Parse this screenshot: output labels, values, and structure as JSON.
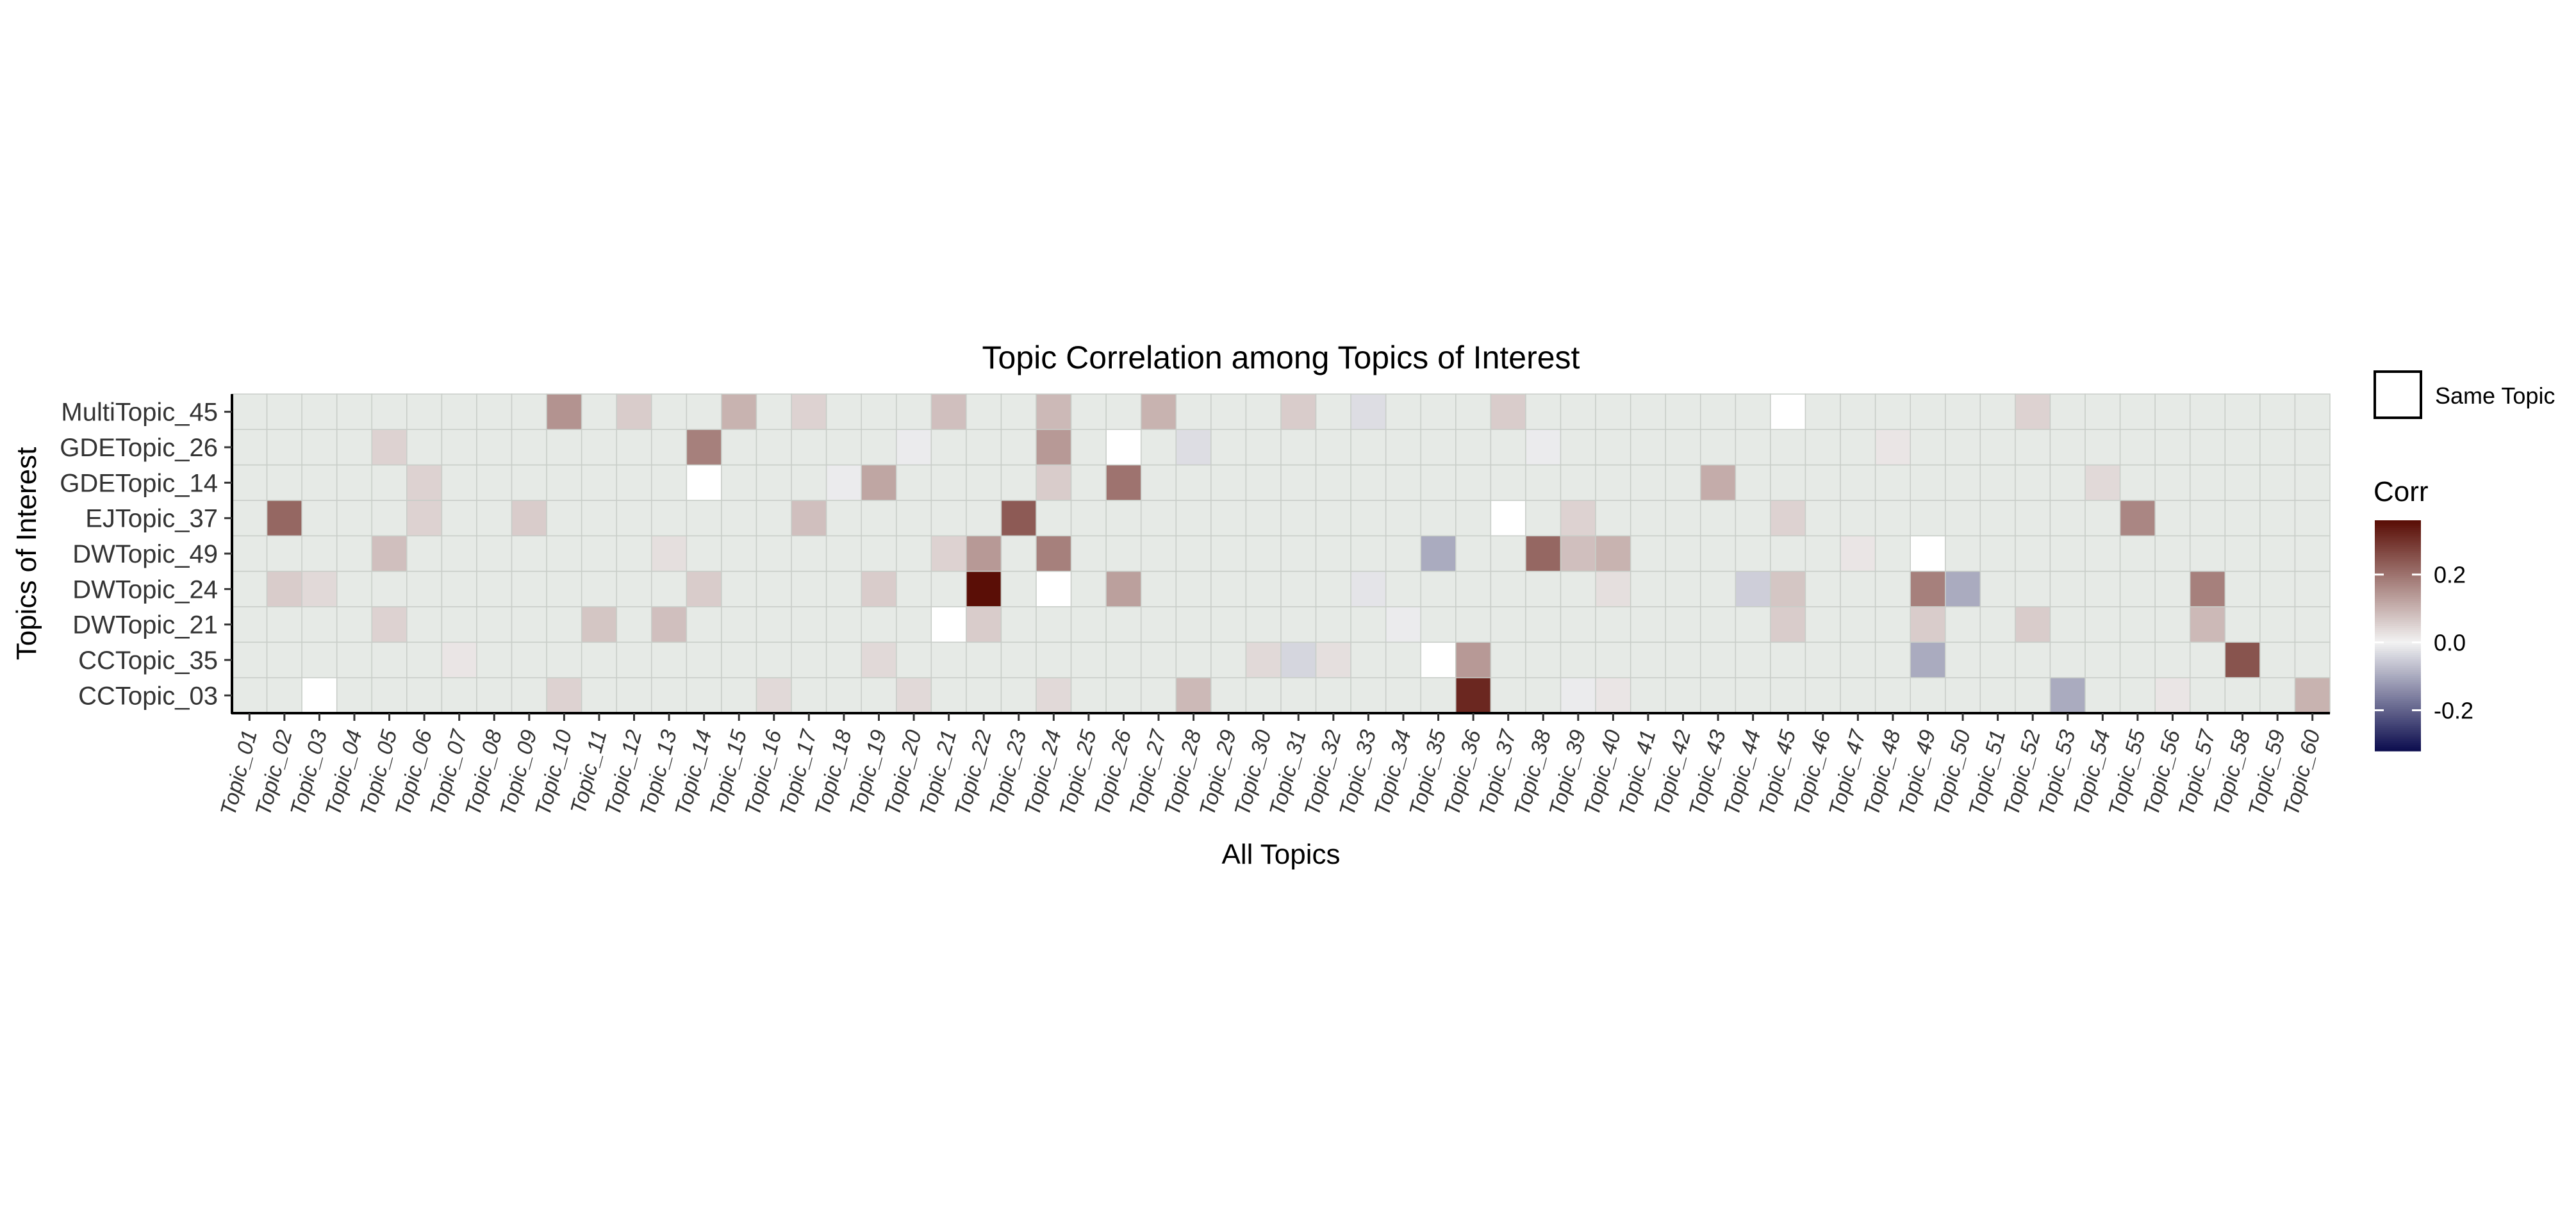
{
  "chart_data": {
    "type": "heatmap",
    "title": "Topic Correlation among Topics of Interest",
    "xlabel": "All Topics",
    "ylabel": "Topics of Interest",
    "x_categories": [
      "Topic_01",
      "Topic_02",
      "Topic_03",
      "Topic_04",
      "Topic_05",
      "Topic_06",
      "Topic_07",
      "Topic_08",
      "Topic_09",
      "Topic_10",
      "Topic_11",
      "Topic_12",
      "Topic_13",
      "Topic_14",
      "Topic_15",
      "Topic_16",
      "Topic_17",
      "Topic_18",
      "Topic_19",
      "Topic_20",
      "Topic_21",
      "Topic_22",
      "Topic_23",
      "Topic_24",
      "Topic_25",
      "Topic_26",
      "Topic_27",
      "Topic_28",
      "Topic_29",
      "Topic_30",
      "Topic_31",
      "Topic_32",
      "Topic_33",
      "Topic_34",
      "Topic_35",
      "Topic_36",
      "Topic_37",
      "Topic_38",
      "Topic_39",
      "Topic_40",
      "Topic_41",
      "Topic_42",
      "Topic_43",
      "Topic_44",
      "Topic_45",
      "Topic_46",
      "Topic_47",
      "Topic_48",
      "Topic_49",
      "Topic_50",
      "Topic_51",
      "Topic_52",
      "Topic_53",
      "Topic_54",
      "Topic_55",
      "Topic_56",
      "Topic_57",
      "Topic_58",
      "Topic_59",
      "Topic_60"
    ],
    "y_categories": [
      "MultiTopic_45",
      "GDETopic_26",
      "GDETopic_14",
      "EJTopic_37",
      "DWTopic_49",
      "DWTopic_24",
      "DWTopic_21",
      "CCTopic_35",
      "CCTopic_03"
    ],
    "base_value": 0.0,
    "cells": [
      {
        "y": "MultiTopic_45",
        "x": "Topic_10",
        "v": 0.15
      },
      {
        "y": "MultiTopic_45",
        "x": "Topic_12",
        "v": 0.06
      },
      {
        "y": "MultiTopic_45",
        "x": "Topic_15",
        "v": 0.1
      },
      {
        "y": "MultiTopic_45",
        "x": "Topic_17",
        "v": 0.05
      },
      {
        "y": "MultiTopic_45",
        "x": "Topic_21",
        "v": 0.08
      },
      {
        "y": "MultiTopic_45",
        "x": "Topic_24",
        "v": 0.09
      },
      {
        "y": "MultiTopic_45",
        "x": "Topic_27",
        "v": 0.1
      },
      {
        "y": "MultiTopic_45",
        "x": "Topic_31",
        "v": 0.06
      },
      {
        "y": "MultiTopic_45",
        "x": "Topic_33",
        "v": -0.03
      },
      {
        "y": "MultiTopic_45",
        "x": "Topic_37",
        "v": 0.06
      },
      {
        "y": "MultiTopic_45",
        "x": "Topic_52",
        "v": 0.05
      },
      {
        "y": "GDETopic_26",
        "x": "Topic_05",
        "v": 0.05
      },
      {
        "y": "GDETopic_26",
        "x": "Topic_14",
        "v": 0.18
      },
      {
        "y": "GDETopic_26",
        "x": "Topic_20",
        "v": -0.01
      },
      {
        "y": "GDETopic_26",
        "x": "Topic_24",
        "v": 0.14
      },
      {
        "y": "GDETopic_26",
        "x": "Topic_28",
        "v": -0.03
      },
      {
        "y": "GDETopic_26",
        "x": "Topic_38",
        "v": -0.01
      },
      {
        "y": "GDETopic_26",
        "x": "Topic_48",
        "v": 0.02
      },
      {
        "y": "GDETopic_14",
        "x": "Topic_06",
        "v": 0.05
      },
      {
        "y": "GDETopic_14",
        "x": "Topic_18",
        "v": -0.01
      },
      {
        "y": "GDETopic_14",
        "x": "Topic_19",
        "v": 0.12
      },
      {
        "y": "GDETopic_14",
        "x": "Topic_24",
        "v": 0.06
      },
      {
        "y": "GDETopic_14",
        "x": "Topic_26",
        "v": 0.2
      },
      {
        "y": "GDETopic_14",
        "x": "Topic_43",
        "v": 0.11
      },
      {
        "y": "GDETopic_14",
        "x": "Topic_54",
        "v": 0.04
      },
      {
        "y": "EJTopic_37",
        "x": "Topic_02",
        "v": 0.22
      },
      {
        "y": "EJTopic_37",
        "x": "Topic_06",
        "v": 0.05
      },
      {
        "y": "EJTopic_37",
        "x": "Topic_09",
        "v": 0.06
      },
      {
        "y": "EJTopic_37",
        "x": "Topic_17",
        "v": 0.08
      },
      {
        "y": "EJTopic_37",
        "x": "Topic_23",
        "v": 0.24
      },
      {
        "y": "EJTopic_37",
        "x": "Topic_39",
        "v": 0.05
      },
      {
        "y": "EJTopic_37",
        "x": "Topic_45",
        "v": 0.05
      },
      {
        "y": "EJTopic_37",
        "x": "Topic_55",
        "v": 0.17
      },
      {
        "y": "DWTopic_49",
        "x": "Topic_05",
        "v": 0.08
      },
      {
        "y": "DWTopic_49",
        "x": "Topic_13",
        "v": 0.03
      },
      {
        "y": "DWTopic_49",
        "x": "Topic_21",
        "v": 0.05
      },
      {
        "y": "DWTopic_49",
        "x": "Topic_22",
        "v": 0.14
      },
      {
        "y": "DWTopic_49",
        "x": "Topic_24",
        "v": 0.18
      },
      {
        "y": "DWTopic_49",
        "x": "Topic_35",
        "v": -0.1
      },
      {
        "y": "DWTopic_49",
        "x": "Topic_38",
        "v": 0.22
      },
      {
        "y": "DWTopic_49",
        "x": "Topic_39",
        "v": 0.08
      },
      {
        "y": "DWTopic_49",
        "x": "Topic_40",
        "v": 0.1
      },
      {
        "y": "DWTopic_49",
        "x": "Topic_47",
        "v": 0.02
      },
      {
        "y": "DWTopic_24",
        "x": "Topic_02",
        "v": 0.06
      },
      {
        "y": "DWTopic_24",
        "x": "Topic_03",
        "v": 0.04
      },
      {
        "y": "DWTopic_24",
        "x": "Topic_14",
        "v": 0.06
      },
      {
        "y": "DWTopic_24",
        "x": "Topic_19",
        "v": 0.06
      },
      {
        "y": "DWTopic_24",
        "x": "Topic_22",
        "v": 0.36
      },
      {
        "y": "DWTopic_24",
        "x": "Topic_26",
        "v": 0.13
      },
      {
        "y": "DWTopic_24",
        "x": "Topic_33",
        "v": -0.02
      },
      {
        "y": "DWTopic_24",
        "x": "Topic_40",
        "v": 0.03
      },
      {
        "y": "DWTopic_24",
        "x": "Topic_44",
        "v": -0.05
      },
      {
        "y": "DWTopic_24",
        "x": "Topic_45",
        "v": 0.07
      },
      {
        "y": "DWTopic_24",
        "x": "Topic_49",
        "v": 0.18
      },
      {
        "y": "DWTopic_24",
        "x": "Topic_50",
        "v": -0.1
      },
      {
        "y": "DWTopic_24",
        "x": "Topic_57",
        "v": 0.18
      },
      {
        "y": "DWTopic_21",
        "x": "Topic_05",
        "v": 0.05
      },
      {
        "y": "DWTopic_21",
        "x": "Topic_11",
        "v": 0.07
      },
      {
        "y": "DWTopic_21",
        "x": "Topic_13",
        "v": 0.08
      },
      {
        "y": "DWTopic_21",
        "x": "Topic_22",
        "v": 0.06
      },
      {
        "y": "DWTopic_21",
        "x": "Topic_34",
        "v": -0.01
      },
      {
        "y": "DWTopic_21",
        "x": "Topic_45",
        "v": 0.06
      },
      {
        "y": "DWTopic_21",
        "x": "Topic_49",
        "v": 0.06
      },
      {
        "y": "DWTopic_21",
        "x": "Topic_52",
        "v": 0.06
      },
      {
        "y": "DWTopic_21",
        "x": "Topic_57",
        "v": 0.09
      },
      {
        "y": "CCTopic_35",
        "x": "Topic_07",
        "v": 0.02
      },
      {
        "y": "CCTopic_35",
        "x": "Topic_19",
        "v": 0.04
      },
      {
        "y": "CCTopic_35",
        "x": "Topic_30",
        "v": 0.04
      },
      {
        "y": "CCTopic_35",
        "x": "Topic_31",
        "v": -0.04
      },
      {
        "y": "CCTopic_35",
        "x": "Topic_32",
        "v": 0.03
      },
      {
        "y": "CCTopic_35",
        "x": "Topic_36",
        "v": 0.14
      },
      {
        "y": "CCTopic_35",
        "x": "Topic_49",
        "v": -0.1
      },
      {
        "y": "CCTopic_35",
        "x": "Topic_58",
        "v": 0.25
      },
      {
        "y": "CCTopic_03",
        "x": "Topic_10",
        "v": 0.05
      },
      {
        "y": "CCTopic_03",
        "x": "Topic_16",
        "v": 0.04
      },
      {
        "y": "CCTopic_03",
        "x": "Topic_20",
        "v": 0.04
      },
      {
        "y": "CCTopic_03",
        "x": "Topic_24",
        "v": 0.04
      },
      {
        "y": "CCTopic_03",
        "x": "Topic_28",
        "v": 0.09
      },
      {
        "y": "CCTopic_03",
        "x": "Topic_36",
        "v": 0.32
      },
      {
        "y": "CCTopic_03",
        "x": "Topic_39",
        "v": -0.01
      },
      {
        "y": "CCTopic_03",
        "x": "Topic_40",
        "v": 0.02
      },
      {
        "y": "CCTopic_03",
        "x": "Topic_53",
        "v": -0.1
      },
      {
        "y": "CCTopic_03",
        "x": "Topic_56",
        "v": 0.02
      },
      {
        "y": "CCTopic_03",
        "x": "Topic_60",
        "v": 0.1
      }
    ],
    "same_topic_cells": [
      {
        "y": "MultiTopic_45",
        "x": "Topic_45"
      },
      {
        "y": "GDETopic_26",
        "x": "Topic_26"
      },
      {
        "y": "GDETopic_14",
        "x": "Topic_14"
      },
      {
        "y": "EJTopic_37",
        "x": "Topic_37"
      },
      {
        "y": "DWTopic_49",
        "x": "Topic_49"
      },
      {
        "y": "DWTopic_24",
        "x": "Topic_24"
      },
      {
        "y": "DWTopic_21",
        "x": "Topic_21"
      },
      {
        "y": "CCTopic_35",
        "x": "Topic_35"
      },
      {
        "y": "CCTopic_03",
        "x": "Topic_03"
      }
    ],
    "color_scale": {
      "low": "#0d0e4f",
      "mid": "#f2f2f2",
      "high": "#5a0e06",
      "limits": [
        -0.32,
        0.36
      ],
      "ticks": [
        -0.2,
        0.0,
        0.2
      ],
      "tick_labels": [
        "-0.2",
        "0.0",
        "0.2"
      ]
    },
    "grid": true,
    "legend": {
      "position": "right",
      "same_topic_label": "Same Topic",
      "colorbar_title": "Corr"
    }
  }
}
